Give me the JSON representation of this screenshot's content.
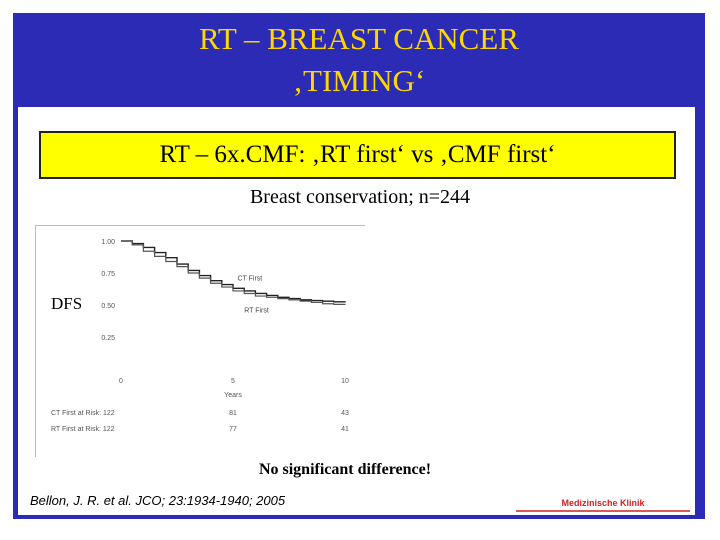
{
  "slide": {
    "title_line1": "RT – BREAST CANCER",
    "title_line2": "‚TIMING‘",
    "subtitle": "RT – 6x.CMF: ‚RT first‘ vs ‚CMF first‘",
    "subheading": "Breast conservation; n=244",
    "dfs_label": "DFS",
    "conclusion": "No significant difference!",
    "citation": "Bellon, J. R. et al. JCO; 23:1934-1940; 2005"
  },
  "colors": {
    "frame_blue": "#2b2bb5",
    "title_yellow": "#ffd700",
    "box_yellow": "#ffff00",
    "logo_red": "#d22222"
  },
  "chart_data": {
    "type": "line",
    "title": "",
    "xlabel": "Years",
    "ylabel": "DFS",
    "xlim": [
      0,
      10
    ],
    "ylim": [
      0,
      1
    ],
    "xticks": [
      "0",
      "5",
      "10"
    ],
    "yticks": [
      "1.00",
      "0.75",
      "0.50",
      "0.25"
    ],
    "series": [
      {
        "name": "CT First",
        "x": [
          0,
          0.5,
          1,
          1.5,
          2,
          2.5,
          3,
          3.5,
          4,
          4.5,
          5,
          5.5,
          6,
          6.5,
          7,
          7.5,
          8,
          8.5,
          9,
          9.5,
          10
        ],
        "y": [
          1.0,
          0.98,
          0.95,
          0.91,
          0.87,
          0.82,
          0.77,
          0.73,
          0.69,
          0.66,
          0.63,
          0.61,
          0.59,
          0.575,
          0.56,
          0.55,
          0.54,
          0.535,
          0.53,
          0.525,
          0.52
        ]
      },
      {
        "name": "RT First",
        "x": [
          0,
          0.5,
          1,
          1.5,
          2,
          2.5,
          3,
          3.5,
          4,
          4.5,
          5,
          5.5,
          6,
          6.5,
          7,
          7.5,
          8,
          8.5,
          9,
          9.5,
          10
        ],
        "y": [
          1.0,
          0.97,
          0.92,
          0.88,
          0.84,
          0.8,
          0.75,
          0.71,
          0.67,
          0.64,
          0.61,
          0.59,
          0.57,
          0.56,
          0.55,
          0.54,
          0.53,
          0.52,
          0.51,
          0.505,
          0.5
        ]
      }
    ],
    "annotations": [
      "CT First",
      "RT First"
    ],
    "at_risk": {
      "rows": [
        {
          "label": "CT First at Risk: 122",
          "values": [
            "81",
            "43"
          ]
        },
        {
          "label": "RT First at Risk: 122",
          "values": [
            "77",
            "41"
          ]
        }
      ]
    }
  },
  "logo_text": "Medizinische Klinik"
}
